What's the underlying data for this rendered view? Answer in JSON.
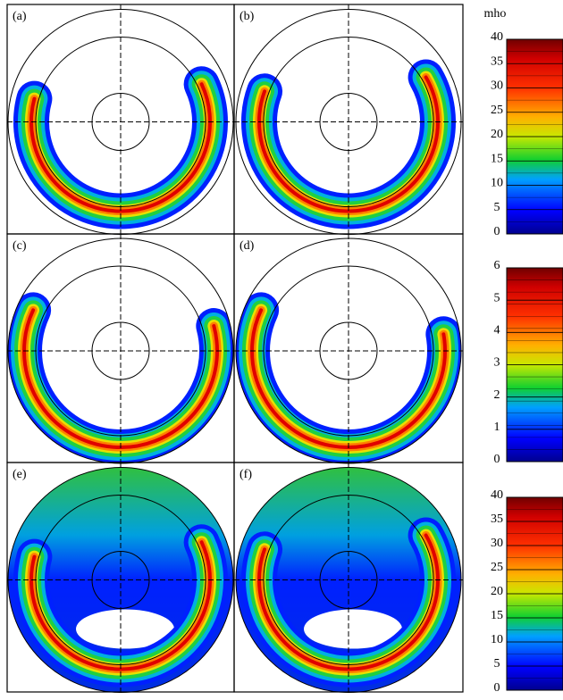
{
  "panels": [
    {
      "label": "(a)"
    },
    {
      "label": "(b)"
    },
    {
      "label": "(c)"
    },
    {
      "label": "(d)"
    },
    {
      "label": "(e)"
    },
    {
      "label": "(f)"
    }
  ],
  "colorbars": [
    {
      "unit": "mho",
      "ticks": [
        0,
        5,
        10,
        15,
        20,
        25,
        30,
        35,
        40
      ]
    },
    {
      "ticks": [
        0,
        1,
        2,
        3,
        4,
        5,
        6
      ]
    },
    {
      "ticks": [
        0,
        5,
        10,
        15,
        20,
        25,
        30,
        35,
        40
      ]
    }
  ]
}
